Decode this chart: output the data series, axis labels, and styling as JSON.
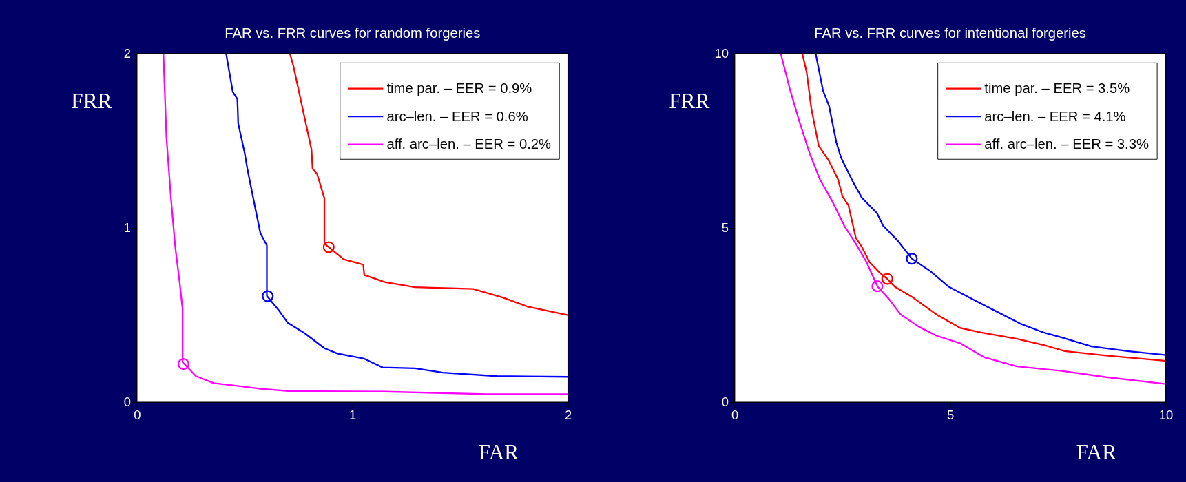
{
  "chart_data": [
    {
      "type": "line",
      "title": "FAR vs. FRR curves for random forgeries",
      "xlabel": "FAR",
      "ylabel": "FRR",
      "xlim": [
        0,
        2
      ],
      "ylim": [
        0,
        2
      ],
      "xticks": [
        0,
        1,
        2
      ],
      "yticks": [
        0,
        1,
        2
      ],
      "grid": false,
      "legend": "top right",
      "marker": "none",
      "line_style": "solid",
      "series": [
        {
          "name": "time par. – EER = 0.9%",
          "color": "#ff0000",
          "x": [
            0.71,
            0.726,
            0.81,
            0.815,
            0.836,
            0.87,
            0.87,
            0.89,
            0.96,
            1.05,
            1.055,
            1.15,
            1.29,
            1.56,
            1.7,
            1.81,
            2.0
          ],
          "values": [
            2.0,
            1.93,
            1.45,
            1.34,
            1.31,
            1.17,
            0.91,
            0.89,
            0.82,
            0.79,
            0.73,
            0.69,
            0.66,
            0.65,
            0.6,
            0.55,
            0.5
          ]
        },
        {
          "name": "arc–len. – EER = 0.6%",
          "color": "#0000ff",
          "x": [
            0.414,
            0.445,
            0.466,
            0.47,
            0.5,
            0.514,
            0.54,
            0.573,
            0.603,
            0.603,
            0.66,
            0.7,
            0.78,
            0.87,
            0.93,
            1.055,
            1.14,
            1.29,
            1.42,
            1.67,
            2.0
          ],
          "values": [
            2.0,
            1.78,
            1.74,
            1.6,
            1.43,
            1.33,
            1.17,
            0.97,
            0.9,
            0.61,
            0.525,
            0.456,
            0.395,
            0.31,
            0.28,
            0.25,
            0.2,
            0.195,
            0.17,
            0.15,
            0.146
          ]
        },
        {
          "name": "aff. arc–len. – EER = 0.2%",
          "color": "#ff00ff",
          "x": [
            0.123,
            0.137,
            0.158,
            0.178,
            0.199,
            0.212,
            0.212,
            0.274,
            0.356,
            0.466,
            0.575,
            0.71,
            1.15,
            1.62,
            2.0
          ],
          "values": [
            2.0,
            1.52,
            1.17,
            0.89,
            0.68,
            0.534,
            0.23,
            0.15,
            0.11,
            0.094,
            0.077,
            0.064,
            0.061,
            0.047,
            0.047
          ]
        },
        {
          "type": "scatter",
          "marker": "circle",
          "color": "#ff0000",
          "x": [
            0.89
          ],
          "values": [
            0.89
          ]
        },
        {
          "type": "scatter",
          "marker": "circle",
          "color": "#0000ff",
          "x": [
            0.607
          ],
          "values": [
            0.609
          ]
        },
        {
          "type": "scatter",
          "marker": "circle",
          "color": "#ff00ff",
          "x": [
            0.216
          ],
          "values": [
            0.22
          ]
        }
      ]
    },
    {
      "type": "line",
      "title": "FAR vs. FRR curves for intentional forgeries",
      "xlabel": "FAR",
      "ylabel": "FRR",
      "xlim": [
        0,
        10
      ],
      "ylim": [
        0,
        10
      ],
      "xticks": [
        0,
        5,
        10
      ],
      "yticks": [
        0,
        5,
        10
      ],
      "grid": false,
      "legend": "top right",
      "marker": "none",
      "line_style": "solid",
      "series": [
        {
          "name": "time par. – EER = 3.5%",
          "color": "#ff0000",
          "x": [
            1.57,
            1.67,
            1.78,
            1.95,
            2.19,
            2.4,
            2.5,
            2.64,
            2.81,
            2.95,
            3.13,
            3.37,
            3.54,
            3.71,
            4.13,
            4.68,
            5.24,
            5.72,
            6.55,
            7.17,
            7.66,
            8.62,
            9.97
          ],
          "values": [
            10.0,
            9.47,
            8.42,
            7.36,
            6.92,
            6.39,
            5.91,
            5.65,
            4.72,
            4.46,
            4.02,
            3.71,
            3.54,
            3.32,
            3.01,
            2.52,
            2.13,
            2.0,
            1.82,
            1.64,
            1.47,
            1.34,
            1.19
          ]
        },
        {
          "name": "arc–len. – EER = 4.1%",
          "color": "#0000ff",
          "x": [
            1.88,
            2.05,
            2.19,
            2.36,
            2.47,
            2.75,
            2.95,
            3.3,
            3.44,
            3.78,
            4.11,
            4.54,
            4.96,
            5.58,
            6.13,
            6.62,
            7.17,
            7.59,
            8.28,
            9.11,
            9.97
          ],
          "values": [
            10.0,
            8.94,
            8.5,
            7.45,
            7.01,
            6.31,
            5.87,
            5.43,
            5.07,
            4.64,
            4.12,
            3.76,
            3.32,
            2.92,
            2.57,
            2.26,
            2.0,
            1.86,
            1.6,
            1.47,
            1.36
          ]
        },
        {
          "name": "aff. arc–len. – EER = 3.3%",
          "color": "#ff00ff",
          "x": [
            1.07,
            1.29,
            1.5,
            1.74,
            1.98,
            2.26,
            2.54,
            2.81,
            3.06,
            3.31,
            3.58,
            3.85,
            4.27,
            4.68,
            5.24,
            5.79,
            6.55,
            7.59,
            8.62,
            9.97
          ],
          "values": [
            10.0,
            8.94,
            8.06,
            7.14,
            6.39,
            5.78,
            5.07,
            4.55,
            4.02,
            3.33,
            2.96,
            2.52,
            2.17,
            1.91,
            1.69,
            1.29,
            1.03,
            0.9,
            0.72,
            0.53
          ]
        },
        {
          "type": "scatter",
          "marker": "circle",
          "color": "#ff0000",
          "x": [
            3.54
          ],
          "values": [
            3.54
          ]
        },
        {
          "type": "scatter",
          "marker": "circle",
          "color": "#0000ff",
          "x": [
            4.11
          ],
          "values": [
            4.12
          ]
        },
        {
          "type": "scatter",
          "marker": "circle",
          "color": "#ff00ff",
          "x": [
            3.31
          ],
          "values": [
            3.33
          ]
        }
      ]
    }
  ]
}
